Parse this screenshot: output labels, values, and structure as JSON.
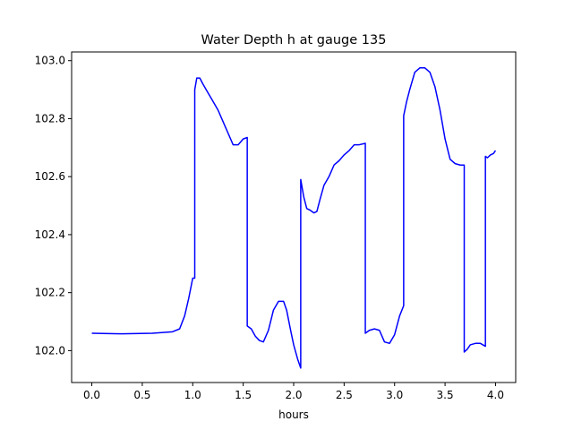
{
  "chart_data": {
    "type": "line",
    "title": "Water Depth h at gauge 135",
    "xlabel": "hours",
    "ylabel": "",
    "xlim": [
      -0.2,
      4.2
    ],
    "ylim": [
      101.89,
      103.03
    ],
    "xticks": [
      0.0,
      0.5,
      1.0,
      1.5,
      2.0,
      2.5,
      3.0,
      3.5,
      4.0
    ],
    "xtick_labels": [
      "0.0",
      "0.5",
      "1.0",
      "1.5",
      "2.0",
      "2.5",
      "3.0",
      "3.5",
      "4.0"
    ],
    "yticks": [
      102.0,
      102.2,
      102.4,
      102.6,
      102.8,
      103.0
    ],
    "ytick_labels": [
      "102.0",
      "102.2",
      "102.4",
      "102.6",
      "102.8",
      "103.0"
    ],
    "grid": false,
    "legend": "none",
    "series": [
      {
        "color": "#0000ff",
        "x": [
          0.0,
          0.3,
          0.6,
          0.8,
          0.87,
          0.92,
          0.96,
          1.0,
          1.02,
          1.02,
          1.04,
          1.07,
          1.1,
          1.15,
          1.2,
          1.25,
          1.3,
          1.35,
          1.4,
          1.45,
          1.5,
          1.54,
          1.54,
          1.58,
          1.62,
          1.66,
          1.7,
          1.75,
          1.8,
          1.85,
          1.9,
          1.93,
          1.97,
          2.0,
          2.04,
          2.07,
          2.07,
          2.1,
          2.13,
          2.16,
          2.2,
          2.23,
          2.26,
          2.3,
          2.35,
          2.4,
          2.45,
          2.5,
          2.55,
          2.6,
          2.65,
          2.71,
          2.71,
          2.75,
          2.8,
          2.85,
          2.9,
          2.95,
          3.0,
          3.05,
          3.09,
          3.09,
          3.12,
          3.15,
          3.2,
          3.25,
          3.3,
          3.35,
          3.4,
          3.45,
          3.5,
          3.55,
          3.6,
          3.65,
          3.69,
          3.69,
          3.72,
          3.75,
          3.8,
          3.85,
          3.9,
          3.9,
          3.92,
          3.95,
          3.98,
          4.0
        ],
        "y": [
          102.06,
          102.058,
          102.06,
          102.065,
          102.075,
          102.12,
          102.18,
          102.25,
          102.25,
          102.9,
          102.94,
          102.94,
          102.92,
          102.89,
          102.86,
          102.83,
          102.79,
          102.75,
          102.71,
          102.71,
          102.73,
          102.735,
          102.085,
          102.075,
          102.05,
          102.035,
          102.03,
          102.07,
          102.14,
          102.17,
          102.17,
          102.14,
          102.07,
          102.02,
          101.97,
          101.94,
          102.59,
          102.53,
          102.49,
          102.485,
          102.475,
          102.48,
          102.52,
          102.57,
          102.6,
          102.64,
          102.655,
          102.675,
          102.69,
          102.71,
          102.71,
          102.715,
          102.06,
          102.07,
          102.075,
          102.07,
          102.03,
          102.025,
          102.055,
          102.12,
          102.155,
          102.81,
          102.86,
          102.9,
          102.96,
          102.975,
          102.975,
          102.96,
          102.91,
          102.83,
          102.73,
          102.66,
          102.645,
          102.64,
          102.64,
          101.995,
          102.005,
          102.02,
          102.025,
          102.025,
          102.015,
          102.67,
          102.665,
          102.675,
          102.68,
          102.69
        ]
      }
    ]
  }
}
